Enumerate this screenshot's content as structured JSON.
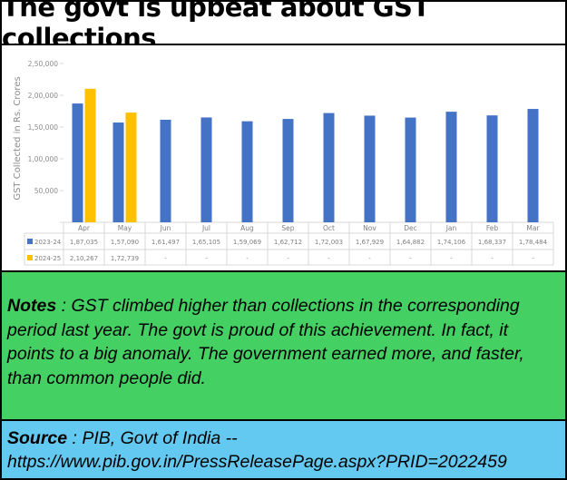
{
  "title": "The govt is upbeat about GST collections",
  "chart_data": {
    "type": "bar",
    "ylabel": "GST Collected in Rs. Crores",
    "ylim": [
      0,
      250000
    ],
    "yticks": [
      "",
      "50,000",
      "1,00,000",
      "1,50,000",
      "2,00,000",
      "2,50,000"
    ],
    "categories": [
      "Apr",
      "May",
      "Jun",
      "Jul",
      "Aug",
      "Sep",
      "Oct",
      "Nov",
      "Dec",
      "Jan",
      "Feb",
      "Mar"
    ],
    "series": [
      {
        "name": "2023-24",
        "color": "#4472c4",
        "values": [
          187035,
          157090,
          161497,
          165105,
          159069,
          162712,
          172003,
          167929,
          164882,
          174106,
          168337,
          178484
        ],
        "labels": [
          "1,87,035",
          "1,57,090",
          "1,61,497",
          "1,65,105",
          "1,59,069",
          "1,62,712",
          "1,72,003",
          "1,67,929",
          "1,64,882",
          "1,74,106",
          "1,68,337",
          "1,78,484"
        ]
      },
      {
        "name": "2024-25",
        "color": "#ffc000",
        "values": [
          210267,
          172739,
          null,
          null,
          null,
          null,
          null,
          null,
          null,
          null,
          null,
          null
        ],
        "labels": [
          "2,10,267",
          "1,72,739",
          "-",
          "-",
          "-",
          "-",
          "-",
          "-",
          "-",
          "-",
          "-",
          "-"
        ]
      }
    ]
  },
  "notes": {
    "label": "Notes",
    "text": " : GST climbed higher than collections in the corresponding period last year.  The govt is proud of this achievement.  In fact, it points to a big anomaly.  The government earned more, and faster, than common people did."
  },
  "source": {
    "label": "Source",
    "text": " : PIB, Govt of India --",
    "url": "https://www.pib.gov.in/PressReleasePage.aspx?PRID=2022459"
  }
}
